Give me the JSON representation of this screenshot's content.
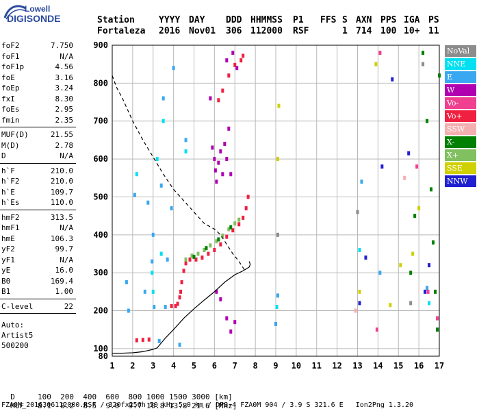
{
  "logo": {
    "line1": "Lowell",
    "line2": "DIGISONDE"
  },
  "header": {
    "row1": [
      {
        "label": "Station",
        "value": "Fortaleza"
      },
      {
        "label": "YYYY",
        "value": "2016"
      },
      {
        "label": "DAY",
        "value": "Nov01"
      },
      {
        "label": "DDD",
        "value": "306"
      },
      {
        "label": "HHMMSS",
        "value": "112000"
      },
      {
        "label": "P1",
        "value": "RSF"
      },
      {
        "label": "FFS",
        "value": ""
      },
      {
        "label": "S",
        "value": "1"
      },
      {
        "label": "AXN",
        "value": "714"
      },
      {
        "label": "PPS",
        "value": "100"
      },
      {
        "label": "IGA",
        "value": "10+"
      },
      {
        "label": "PS",
        "value": "11"
      }
    ]
  },
  "parameters": {
    "group1": [
      {
        "name": "foF2",
        "value": "7.750"
      },
      {
        "name": "foF1",
        "value": "N/A"
      },
      {
        "name": "foF1p",
        "value": "4.56"
      },
      {
        "name": "foE",
        "value": "3.16"
      },
      {
        "name": "foEp",
        "value": "3.24"
      },
      {
        "name": "fxI",
        "value": "8.30"
      },
      {
        "name": "foEs",
        "value": "2.95"
      },
      {
        "name": "fmin",
        "value": "2.35"
      }
    ],
    "group2": [
      {
        "name": "MUF(D)",
        "value": "21.55"
      },
      {
        "name": "M(D)",
        "value": "2.78"
      },
      {
        "name": "D",
        "value": "N/A"
      }
    ],
    "group3": [
      {
        "name": "h`F",
        "value": "210.0"
      },
      {
        "name": "h`F2",
        "value": "210.0"
      },
      {
        "name": "h`E",
        "value": "109.7"
      },
      {
        "name": "h`Es",
        "value": "110.0"
      }
    ],
    "group4": [
      {
        "name": "hmF2",
        "value": "313.5"
      },
      {
        "name": "hmF1",
        "value": "N/A"
      },
      {
        "name": "hmE",
        "value": "106.3"
      },
      {
        "name": "yF2",
        "value": "99.7"
      },
      {
        "name": "yF1",
        "value": "N/A"
      },
      {
        "name": "yE",
        "value": "16.0"
      },
      {
        "name": "B0",
        "value": "169.4"
      },
      {
        "name": "B1",
        "value": "1.00"
      }
    ],
    "group5": [
      {
        "name": "C-level",
        "value": "22"
      }
    ],
    "auto": [
      "Auto:",
      "Artist5",
      "500200"
    ]
  },
  "legend": [
    {
      "label": "NoVal",
      "color": "#8c8c8c"
    },
    {
      "label": "NNE",
      "color": "#00e0f0"
    },
    {
      "label": "E",
      "color": "#3aa8f0"
    },
    {
      "label": "W",
      "color": "#b000b0"
    },
    {
      "label": "Vo-",
      "color": "#f04090"
    },
    {
      "label": "Vo+",
      "color": "#f02040"
    },
    {
      "label": "SSW",
      "color": "#f4b0b0"
    },
    {
      "label": "X-",
      "color": "#008000"
    },
    {
      "label": "X+",
      "color": "#80c060"
    },
    {
      "label": "SSE",
      "color": "#d0d000"
    },
    {
      "label": "NNW",
      "color": "#2020d0"
    }
  ],
  "footer": {
    "d_row": {
      "label": "D",
      "values": "100  200  400  600  800 1000 1500 3000 [km]"
    },
    "muf_row": {
      "label": "MUF",
      "values": "8.1  8.2  8.5  9.0  9.7 10.8 13.8 21.6 [MHz]"
    },
    "info": "FZA0M_2016306112000.RSF / 320fx256h 50 kHz 5.0 km / DPS-4 FZA0M 904 / 3.9 S 321.6 E   Ion2Png 1.3.20"
  },
  "chart_data": {
    "type": "scatter",
    "xlabel": "",
    "ylabel": "",
    "xlim": [
      1,
      17
    ],
    "ylim": [
      80,
      900
    ],
    "x_ticks": [
      1,
      2,
      3,
      4,
      5,
      6,
      7,
      8,
      9,
      10,
      11,
      12,
      13,
      14,
      15,
      16,
      17
    ],
    "y_ticks": [
      100,
      200,
      300,
      400,
      500,
      600,
      700,
      800,
      900
    ],
    "y_tick_labels": [
      "100",
      "200",
      "300",
      "400",
      "500",
      "600",
      "700",
      "800",
      "900"
    ],
    "grid": true,
    "series": [
      {
        "name": "Vo+",
        "color": "#f02040",
        "points": [
          [
            2.2,
            122
          ],
          [
            2.5,
            123
          ],
          [
            2.8,
            124
          ],
          [
            3.9,
            212
          ],
          [
            4.1,
            212
          ],
          [
            4.2,
            218
          ],
          [
            4.3,
            235
          ],
          [
            4.35,
            250
          ],
          [
            4.4,
            275
          ],
          [
            4.5,
            305
          ],
          [
            4.6,
            325
          ],
          [
            4.8,
            335
          ],
          [
            5.1,
            335
          ],
          [
            5.4,
            340
          ],
          [
            5.7,
            350
          ],
          [
            6.0,
            360
          ],
          [
            6.3,
            375
          ],
          [
            6.6,
            395
          ],
          [
            6.9,
            412
          ],
          [
            7.2,
            428
          ],
          [
            7.4,
            445
          ],
          [
            7.55,
            470
          ],
          [
            7.65,
            500
          ],
          [
            6.2,
            755
          ],
          [
            6.4,
            780
          ],
          [
            6.7,
            820
          ],
          [
            7.0,
            848
          ],
          [
            7.3,
            860
          ],
          [
            7.4,
            872
          ]
        ]
      },
      {
        "name": "X+",
        "color": "#80c060",
        "points": [
          [
            4.6,
            335
          ],
          [
            4.9,
            345
          ],
          [
            5.2,
            350
          ],
          [
            5.5,
            360
          ],
          [
            5.8,
            372
          ],
          [
            6.1,
            383
          ],
          [
            6.4,
            398
          ],
          [
            6.7,
            415
          ],
          [
            7.0,
            430
          ],
          [
            7.2,
            440
          ]
        ]
      },
      {
        "name": "X-",
        "color": "#008000",
        "points": [
          [
            5.0,
            342
          ],
          [
            5.6,
            365
          ],
          [
            6.2,
            388
          ],
          [
            6.8,
            420
          ],
          [
            15.6,
            300
          ],
          [
            15.8,
            450
          ],
          [
            16.2,
            880
          ],
          [
            16.4,
            700
          ],
          [
            16.6,
            520
          ],
          [
            16.7,
            380
          ],
          [
            16.8,
            250
          ],
          [
            16.9,
            150
          ],
          [
            17.0,
            820
          ]
        ]
      },
      {
        "name": "W",
        "color": "#b000b0",
        "points": [
          [
            5.9,
            630
          ],
          [
            6.0,
            600
          ],
          [
            6.05,
            570
          ],
          [
            6.1,
            540
          ],
          [
            6.2,
            590
          ],
          [
            6.3,
            620
          ],
          [
            6.4,
            560
          ],
          [
            6.5,
            640
          ],
          [
            6.6,
            600
          ],
          [
            6.7,
            680
          ],
          [
            6.8,
            560
          ],
          [
            5.8,
            760
          ],
          [
            6.6,
            860
          ],
          [
            6.9,
            880
          ],
          [
            7.1,
            840
          ],
          [
            6.1,
            250
          ],
          [
            6.3,
            230
          ],
          [
            6.6,
            180
          ],
          [
            6.8,
            145
          ],
          [
            7.0,
            170
          ]
        ]
      },
      {
        "name": "E",
        "color": "#3aa8f0",
        "points": [
          [
            1.7,
            275
          ],
          [
            1.8,
            200
          ],
          [
            2.1,
            505
          ],
          [
            2.6,
            250
          ],
          [
            2.75,
            485
          ],
          [
            2.95,
            330
          ],
          [
            3.0,
            400
          ],
          [
            3.05,
            210
          ],
          [
            3.3,
            120
          ],
          [
            3.4,
            530
          ],
          [
            3.5,
            760
          ],
          [
            3.6,
            210
          ],
          [
            3.7,
            335
          ],
          [
            3.9,
            470
          ],
          [
            4.0,
            840
          ],
          [
            4.3,
            110
          ],
          [
            4.6,
            650
          ],
          [
            9.0,
            165
          ],
          [
            9.1,
            240
          ],
          [
            13.2,
            540
          ],
          [
            14.1,
            300
          ],
          [
            16.4,
            260
          ]
        ]
      },
      {
        "name": "NNE",
        "color": "#00e0f0",
        "points": [
          [
            2.2,
            560
          ],
          [
            2.95,
            300
          ],
          [
            3.0,
            250
          ],
          [
            3.2,
            600
          ],
          [
            3.4,
            350
          ],
          [
            3.5,
            700
          ],
          [
            4.6,
            620
          ],
          [
            9.05,
            210
          ],
          [
            13.1,
            360
          ],
          [
            16.5,
            220
          ]
        ]
      },
      {
        "name": "SSE",
        "color": "#d0d000",
        "points": [
          [
            9.1,
            600
          ],
          [
            9.15,
            740
          ],
          [
            13.1,
            250
          ],
          [
            13.9,
            850
          ],
          [
            14.6,
            215
          ],
          [
            15.1,
            320
          ],
          [
            15.7,
            350
          ],
          [
            16.0,
            470
          ]
        ]
      },
      {
        "name": "Vo-",
        "color": "#f04090",
        "points": [
          [
            13.95,
            150
          ],
          [
            14.1,
            880
          ],
          [
            16.45,
            250
          ],
          [
            15.9,
            580
          ],
          [
            16.9,
            180
          ]
        ]
      },
      {
        "name": "NNW",
        "color": "#2020d0",
        "points": [
          [
            13.1,
            220
          ],
          [
            13.4,
            340
          ],
          [
            14.2,
            580
          ],
          [
            14.7,
            810
          ],
          [
            15.5,
            615
          ],
          [
            16.3,
            250
          ],
          [
            16.5,
            320
          ]
        ]
      },
      {
        "name": "SSW",
        "color": "#f4b0b0",
        "points": [
          [
            12.9,
            200
          ],
          [
            15.3,
            550
          ]
        ]
      },
      {
        "name": "NoVal",
        "color": "#8c8c8c",
        "points": [
          [
            9.1,
            400
          ],
          [
            13.0,
            460
          ],
          [
            15.6,
            220
          ],
          [
            16.2,
            850
          ]
        ]
      }
    ],
    "profile_curve": {
      "color": "#000000",
      "points": [
        [
          1.0,
          88
        ],
        [
          1.5,
          88
        ],
        [
          2.0,
          89
        ],
        [
          2.5,
          92
        ],
        [
          3.0,
          98
        ],
        [
          3.2,
          102
        ],
        [
          3.4,
          115
        ],
        [
          3.6,
          128
        ],
        [
          4.0,
          150
        ],
        [
          4.5,
          180
        ],
        [
          5.0,
          205
        ],
        [
          5.5,
          228
        ],
        [
          6.0,
          250
        ],
        [
          6.5,
          275
        ],
        [
          7.0,
          295
        ],
        [
          7.4,
          305
        ],
        [
          7.7,
          315
        ],
        [
          7.75,
          322
        ],
        [
          7.7,
          330
        ]
      ]
    },
    "profile_dashed": {
      "color": "#000000",
      "points": [
        [
          1.0,
          820
        ],
        [
          1.2,
          790
        ],
        [
          1.5,
          760
        ],
        [
          2.0,
          700
        ],
        [
          2.5,
          650
        ],
        [
          3.0,
          605
        ],
        [
          3.5,
          560
        ],
        [
          4.0,
          520
        ],
        [
          4.5,
          490
        ],
        [
          5.0,
          460
        ],
        [
          5.5,
          430
        ],
        [
          6.0,
          415
        ],
        [
          6.3,
          400
        ],
        [
          6.6,
          375
        ],
        [
          6.9,
          350
        ],
        [
          7.2,
          330
        ],
        [
          7.5,
          305
        ]
      ]
    }
  }
}
